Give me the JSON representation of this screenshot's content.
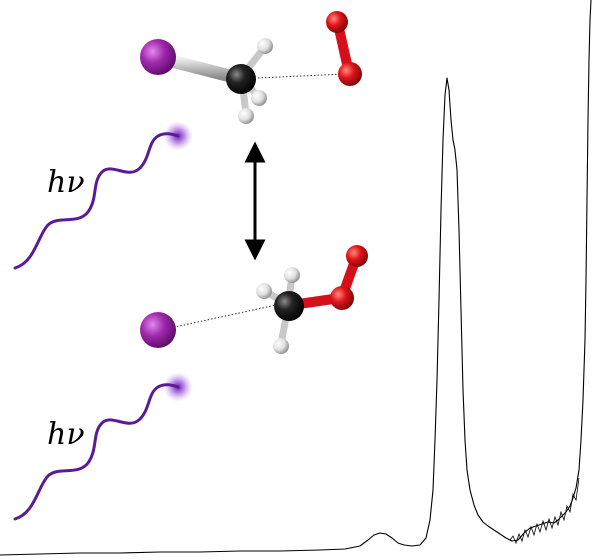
{
  "labels": {
    "photon_top": "hν",
    "photon_bottom": "hν"
  },
  "colors": {
    "iodine": "#9a22a6",
    "oxygen": "#e0141a",
    "carbon": "#1a1a1a",
    "hydrogen": "#dcdcdc",
    "photon_wave": "#5a1a9a",
    "spectrum_line": "#000000"
  },
  "icons": {
    "arrow": "double-headed-vertical-arrow",
    "photon": "wavy-photon-line"
  }
}
